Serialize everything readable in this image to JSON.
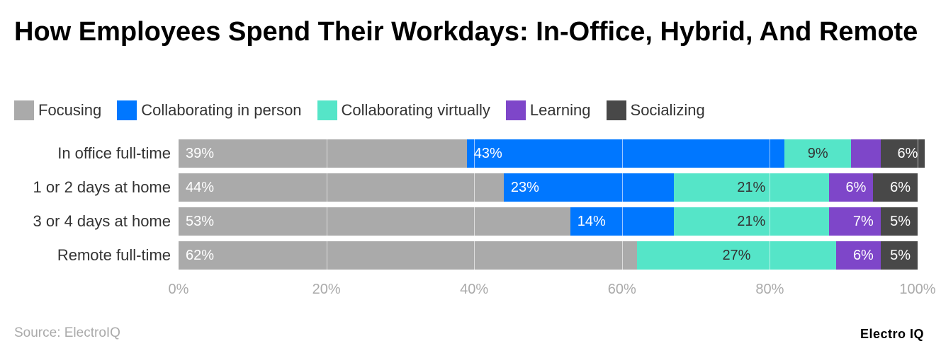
{
  "chart_data": {
    "type": "bar",
    "orientation": "horizontal",
    "stacked": true,
    "title": "How Employees Spend Their Workdays: In-Office, Hybrid, And Remote",
    "categories": [
      "In office full-time",
      "1 or 2 days at home",
      "3 or 4 days at home",
      "Remote full-time"
    ],
    "series": [
      {
        "name": "Focusing",
        "color": "#aaaaaa",
        "label_color": "#ffffff",
        "align": "left",
        "values": [
          39,
          44,
          53,
          62
        ],
        "labels": [
          "39%",
          "44%",
          "53%",
          "62%"
        ]
      },
      {
        "name": "Collaborating in person",
        "color": "#0077ff",
        "label_color": "#ffffff",
        "align": "left",
        "values": [
          43,
          23,
          14,
          0
        ],
        "labels": [
          "43%",
          "23%",
          "14%",
          ""
        ]
      },
      {
        "name": "Collaborating virtually",
        "color": "#55e5c8",
        "label_color": "#333333",
        "align": "center",
        "values": [
          9,
          21,
          21,
          27
        ],
        "labels": [
          "9%",
          "21%",
          "21%",
          "27%"
        ]
      },
      {
        "name": "Learning",
        "color": "#7e46c9",
        "label_color": "#ffffff",
        "align": "right",
        "values": [
          4,
          6,
          7,
          6
        ],
        "labels": [
          "",
          "6%",
          "7%",
          "6%"
        ]
      },
      {
        "name": "Socializing",
        "color": "#484848",
        "label_color": "#ffffff",
        "align": "right",
        "values": [
          6,
          6,
          5,
          5
        ],
        "labels": [
          "6%",
          "6%",
          "5%",
          "5%"
        ]
      }
    ],
    "xlim": [
      0,
      100
    ],
    "xticks": [
      "0%",
      "20%",
      "40%",
      "60%",
      "80%",
      "100%"
    ],
    "grid": true,
    "legend_position": "top-left"
  },
  "source": "Source: ElectroIQ",
  "logo": "Electro IQ"
}
